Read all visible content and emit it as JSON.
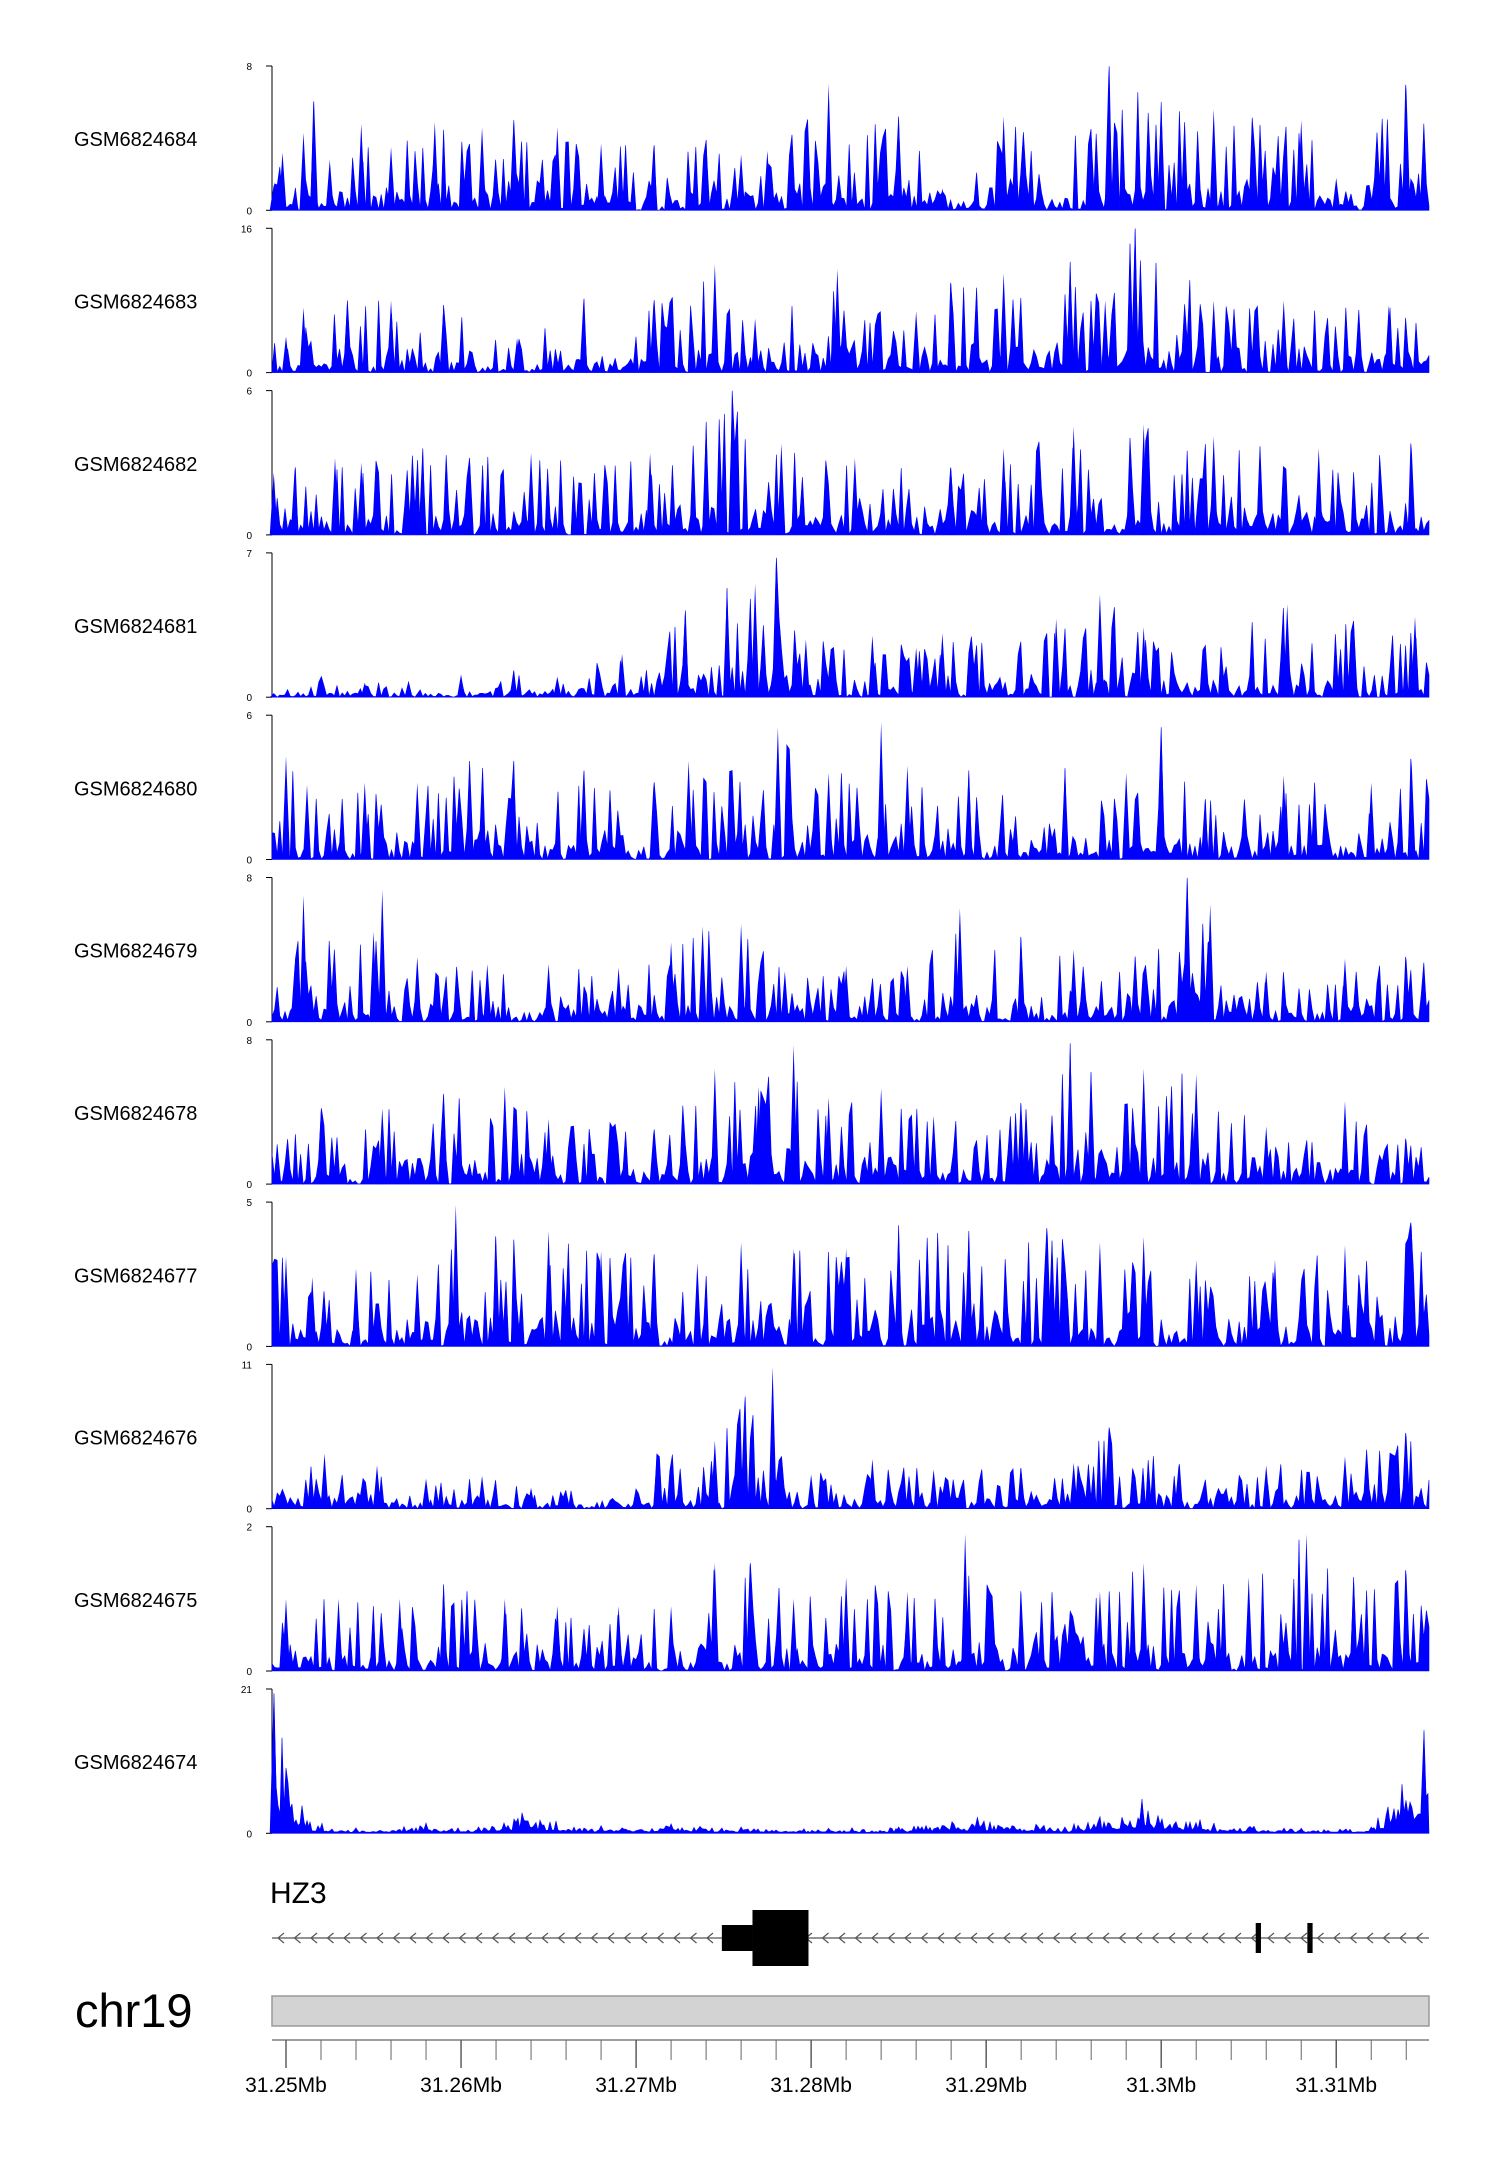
{
  "chart_data": {
    "type": "area",
    "x_unit": "Mb",
    "xlim": [
      31.2492,
      31.3153
    ],
    "x_ticks": [
      {
        "value": 31.25,
        "label": "31.25Mb"
      },
      {
        "value": 31.26,
        "label": "31.26Mb"
      },
      {
        "value": 31.27,
        "label": "31.27Mb"
      },
      {
        "value": 31.28,
        "label": "31.28Mb"
      },
      {
        "value": 31.29,
        "label": "31.29Mb"
      },
      {
        "value": 31.3,
        "label": "31.3Mb"
      },
      {
        "value": 31.31,
        "label": "31.31Mb"
      }
    ],
    "series_color": "#0000ff",
    "tracks": [
      {
        "name": "GSM6824684",
        "ymax": 8,
        "ymax_label": "8",
        "ymin_label": "0",
        "points": [
          [
            31.2493,
            1.4
          ],
          [
            31.2498,
            3.2
          ],
          [
            31.2505,
            1.0
          ],
          [
            31.251,
            4.3
          ],
          [
            31.2516,
            6.1
          ],
          [
            31.2525,
            2.8
          ],
          [
            31.2543,
            4.8
          ],
          [
            31.256,
            3.5
          ],
          [
            31.2585,
            4.9
          ],
          [
            31.2612,
            4.6
          ],
          [
            31.263,
            5.0
          ],
          [
            31.2655,
            4.6
          ],
          [
            31.268,
            3.7
          ],
          [
            31.271,
            3.6
          ],
          [
            31.274,
            3.9
          ],
          [
            31.276,
            3.1
          ],
          [
            31.2775,
            3.3
          ],
          [
            31.281,
            7.0
          ],
          [
            31.285,
            5.2
          ],
          [
            31.2875,
            1.2
          ],
          [
            31.291,
            5.2
          ],
          [
            31.296,
            4.5
          ],
          [
            31.297,
            8.0
          ],
          [
            31.3,
            6.0
          ],
          [
            31.303,
            5.6
          ],
          [
            31.308,
            5.0
          ],
          [
            31.31,
            1.8
          ],
          [
            31.314,
            7.0
          ],
          [
            31.315,
            4.8
          ]
        ]
      },
      {
        "name": "GSM6824683",
        "ymax": 16,
        "ymax_label": "16",
        "ymin_label": "0",
        "points": [
          [
            31.25,
            4.0
          ],
          [
            31.251,
            7.2
          ],
          [
            31.2535,
            8.0
          ],
          [
            31.256,
            8.0
          ],
          [
            31.259,
            7.5
          ],
          [
            31.2632,
            3.8
          ],
          [
            31.267,
            8.2
          ],
          [
            31.271,
            8.0
          ],
          [
            31.2745,
            12.0
          ],
          [
            31.2768,
            6.0
          ],
          [
            31.2815,
            11.5
          ],
          [
            31.286,
            6.8
          ],
          [
            31.288,
            10.0
          ],
          [
            31.291,
            11.0
          ],
          [
            31.2948,
            12.3
          ],
          [
            31.2968,
            8.0
          ],
          [
            31.2985,
            16.0
          ],
          [
            31.303,
            8.0
          ],
          [
            31.307,
            8.0
          ],
          [
            31.313,
            7.5
          ]
        ]
      },
      {
        "name": "GSM6824682",
        "ymax": 6,
        "ymax_label": "6",
        "ymin_label": "0",
        "points": [
          [
            31.2493,
            2.6
          ],
          [
            31.2505,
            2.8
          ],
          [
            31.2528,
            3.2
          ],
          [
            31.2543,
            3.0
          ],
          [
            31.2578,
            3.6
          ],
          [
            31.2605,
            3.2
          ],
          [
            31.264,
            3.4
          ],
          [
            31.2682,
            2.9
          ],
          [
            31.2708,
            3.4
          ],
          [
            31.274,
            4.7
          ],
          [
            31.2755,
            6.0
          ],
          [
            31.2783,
            3.8
          ],
          [
            31.2825,
            3.2
          ],
          [
            31.288,
            2.8
          ],
          [
            31.291,
            3.6
          ],
          [
            31.295,
            4.5
          ],
          [
            31.299,
            4.6
          ],
          [
            31.303,
            4.1
          ],
          [
            31.309,
            3.6
          ],
          [
            31.3143,
            3.8
          ]
        ]
      },
      {
        "name": "GSM6824681",
        "ymax": 7,
        "ymax_label": "7",
        "ymin_label": "0",
        "points": [
          [
            31.2493,
            0.2
          ],
          [
            31.252,
            1.0
          ],
          [
            31.2545,
            0.7
          ],
          [
            31.257,
            0.8
          ],
          [
            31.26,
            1.1
          ],
          [
            31.263,
            1.3
          ],
          [
            31.2655,
            1.0
          ],
          [
            31.2692,
            2.1
          ],
          [
            31.2728,
            4.2
          ],
          [
            31.2752,
            5.3
          ],
          [
            31.2768,
            5.5
          ],
          [
            31.278,
            6.8
          ],
          [
            31.2797,
            2.8
          ],
          [
            31.2835,
            3.0
          ],
          [
            31.286,
            2.4
          ],
          [
            31.2875,
            3.1
          ],
          [
            31.294,
            3.8
          ],
          [
            31.2965,
            5.0
          ],
          [
            31.299,
            3.4
          ],
          [
            31.3025,
            2.5
          ],
          [
            31.3072,
            4.5
          ],
          [
            31.311,
            3.7
          ],
          [
            31.3145,
            3.9
          ]
        ]
      },
      {
        "name": "GSM6824680",
        "ymax": 6,
        "ymax_label": "6",
        "ymin_label": "0",
        "points": [
          [
            31.25,
            4.3
          ],
          [
            31.2512,
            3.1
          ],
          [
            31.2545,
            3.2
          ],
          [
            31.2575,
            3.2
          ],
          [
            31.2605,
            4.1
          ],
          [
            31.263,
            4.1
          ],
          [
            31.267,
            3.7
          ],
          [
            31.271,
            3.2
          ],
          [
            31.273,
            4.1
          ],
          [
            31.2755,
            3.7
          ],
          [
            31.2781,
            5.5
          ],
          [
            31.281,
            3.6
          ],
          [
            31.284,
            5.7
          ],
          [
            31.2855,
            3.9
          ],
          [
            31.289,
            3.7
          ],
          [
            31.2945,
            3.8
          ],
          [
            31.298,
            3.6
          ],
          [
            31.3,
            5.5
          ],
          [
            31.3025,
            2.5
          ],
          [
            31.307,
            3.5
          ],
          [
            31.312,
            3.2
          ],
          [
            31.3143,
            4.2
          ]
        ]
      },
      {
        "name": "GSM6824679",
        "ymax": 8,
        "ymax_label": "8",
        "ymin_label": "0",
        "points": [
          [
            31.2505,
            3.2
          ],
          [
            31.251,
            7.0
          ],
          [
            31.255,
            5.0
          ],
          [
            31.2555,
            7.3
          ],
          [
            31.2575,
            3.6
          ],
          [
            31.2615,
            3.2
          ],
          [
            31.265,
            3.2
          ],
          [
            31.269,
            3.0
          ],
          [
            31.272,
            4.4
          ],
          [
            31.2738,
            5.3
          ],
          [
            31.276,
            5.4
          ],
          [
            31.2785,
            2.8
          ],
          [
            31.282,
            3.1
          ],
          [
            31.2855,
            3.1
          ],
          [
            31.2885,
            6.3
          ],
          [
            31.292,
            4.7
          ],
          [
            31.295,
            4.0
          ],
          [
            31.2985,
            3.6
          ],
          [
            31.3015,
            8.0
          ],
          [
            31.3028,
            6.5
          ],
          [
            31.306,
            2.8
          ],
          [
            31.3105,
            3.5
          ],
          [
            31.314,
            3.6
          ]
        ]
      },
      {
        "name": "GSM6824678",
        "ymax": 8,
        "ymax_label": "8",
        "ymin_label": "0",
        "points": [
          [
            31.2495,
            2.2
          ],
          [
            31.252,
            4.2
          ],
          [
            31.2555,
            4.2
          ],
          [
            31.259,
            5.0
          ],
          [
            31.2625,
            5.4
          ],
          [
            31.265,
            3.6
          ],
          [
            31.2685,
            3.4
          ],
          [
            31.271,
            3.0
          ],
          [
            31.2745,
            6.4
          ],
          [
            31.277,
            5.4
          ],
          [
            31.279,
            7.7
          ],
          [
            31.281,
            4.8
          ],
          [
            31.284,
            5.3
          ],
          [
            31.287,
            3.8
          ],
          [
            31.292,
            4.5
          ],
          [
            31.2948,
            7.8
          ],
          [
            31.296,
            6.2
          ],
          [
            31.299,
            6.4
          ],
          [
            31.302,
            6.1
          ],
          [
            31.306,
            3.2
          ],
          [
            31.3105,
            4.6
          ],
          [
            31.314,
            2.5
          ]
        ]
      },
      {
        "name": "GSM6824677",
        "ymax": 5,
        "ymax_label": "5",
        "ymin_label": "0",
        "points": [
          [
            31.25,
            3.1
          ],
          [
            31.2515,
            2.4
          ],
          [
            31.254,
            2.7
          ],
          [
            31.2575,
            2.5
          ],
          [
            31.2597,
            4.9
          ],
          [
            31.262,
            3.8
          ],
          [
            31.265,
            4.0
          ],
          [
            31.268,
            3.3
          ],
          [
            31.271,
            3.2
          ],
          [
            31.2735,
            2.9
          ],
          [
            31.276,
            3.6
          ],
          [
            31.279,
            3.4
          ],
          [
            31.282,
            3.4
          ],
          [
            31.285,
            4.2
          ],
          [
            31.289,
            4.0
          ],
          [
            31.2935,
            4.1
          ],
          [
            31.2965,
            3.6
          ],
          [
            31.299,
            3.8
          ],
          [
            31.302,
            3.0
          ],
          [
            31.3065,
            3.0
          ],
          [
            31.3105,
            3.5
          ],
          [
            31.3143,
            4.3
          ]
        ]
      },
      {
        "name": "GSM6824676",
        "ymax": 11,
        "ymax_label": "11",
        "ymin_label": "0",
        "points": [
          [
            31.2495,
            1.2
          ],
          [
            31.2522,
            4.2
          ],
          [
            31.2552,
            3.3
          ],
          [
            31.258,
            2.3
          ],
          [
            31.2612,
            2.5
          ],
          [
            31.264,
            1.6
          ],
          [
            31.266,
            1.4
          ],
          [
            31.27,
            1.5
          ],
          [
            31.2712,
            4.2
          ],
          [
            31.2745,
            5.2
          ],
          [
            31.2762,
            8.5
          ],
          [
            31.2778,
            10.8
          ],
          [
            31.28,
            2.6
          ],
          [
            31.2835,
            3.8
          ],
          [
            31.287,
            3.0
          ],
          [
            31.292,
            3.1
          ],
          [
            31.295,
            3.5
          ],
          [
            31.297,
            6.2
          ],
          [
            31.301,
            3.4
          ],
          [
            31.306,
            3.3
          ],
          [
            31.3105,
            4.0
          ],
          [
            31.314,
            5.8
          ]
        ]
      },
      {
        "name": "GSM6824675",
        "ymax": 2,
        "ymax_label": "2",
        "ymin_label": "0",
        "points": [
          [
            31.25,
            1.0
          ],
          [
            31.253,
            1.0
          ],
          [
            31.2565,
            1.0
          ],
          [
            31.259,
            1.2
          ],
          [
            31.2625,
            1.0
          ],
          [
            31.2655,
            0.9
          ],
          [
            31.269,
            0.9
          ],
          [
            31.272,
            0.9
          ],
          [
            31.2745,
            1.5
          ],
          [
            31.2765,
            1.5
          ],
          [
            31.279,
            1.0
          ],
          [
            31.282,
            1.3
          ],
          [
            31.2855,
            1.1
          ],
          [
            31.2888,
            1.9
          ],
          [
            31.292,
            1.1
          ],
          [
            31.2965,
            1.1
          ],
          [
            31.299,
            1.5
          ],
          [
            31.302,
            1.2
          ],
          [
            31.305,
            1.3
          ],
          [
            31.3083,
            1.9
          ],
          [
            31.311,
            1.3
          ],
          [
            31.314,
            1.4
          ]
        ]
      },
      {
        "name": "GSM6824674",
        "ymax": 21,
        "ymax_label": "21",
        "ymin_label": "0",
        "points": [
          [
            31.2493,
            20.5
          ],
          [
            31.2512,
            2.0
          ],
          [
            31.254,
            0.8
          ],
          [
            31.258,
            1.5
          ],
          [
            31.261,
            1.0
          ],
          [
            31.2635,
            3.0
          ],
          [
            31.268,
            1.2
          ],
          [
            31.272,
            1.5
          ],
          [
            31.276,
            1.0
          ],
          [
            31.281,
            0.8
          ],
          [
            31.285,
            1.0
          ],
          [
            31.2895,
            2.5
          ],
          [
            31.2945,
            1.0
          ],
          [
            31.2989,
            5.0
          ],
          [
            31.303,
            1.5
          ],
          [
            31.308,
            0.8
          ],
          [
            31.312,
            1.0
          ],
          [
            31.315,
            15.0
          ]
        ]
      }
    ],
    "gene": {
      "name": "HZ3",
      "strand": "-",
      "start": 31.2492,
      "end": 31.3153,
      "utr_blocks": [
        [
          31.2749,
          31.27665
        ]
      ],
      "exons": [
        [
          31.27665,
          31.27985
        ],
        [
          31.3054,
          31.3057
        ],
        [
          31.30835,
          31.30865
        ]
      ]
    },
    "ideogram": {
      "label": "chr19"
    }
  }
}
